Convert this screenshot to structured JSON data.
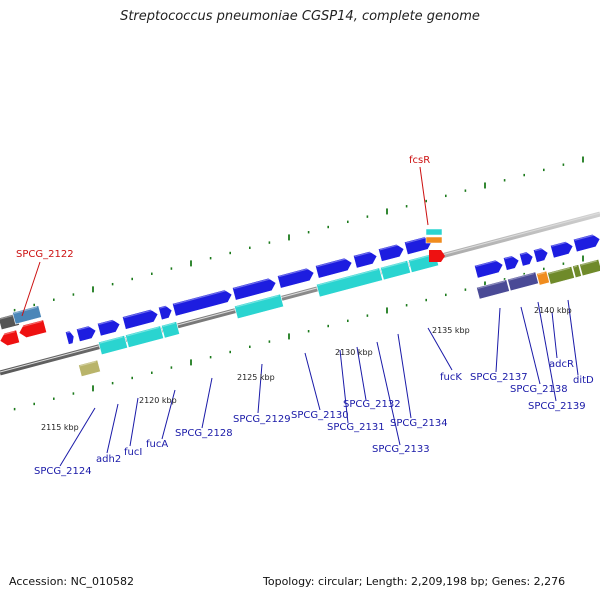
{
  "title": "Streptococcus pneumoniae CGSP14, complete genome",
  "footer": {
    "accession": "Accession: NC_010582",
    "summary": "Topology: circular; Length: 2,209,198 bp; Genes: 2,276"
  },
  "colors": {
    "backbone": "#8a8a8a",
    "gene_blue": "#1d1de0",
    "gene_red": "#ee1111",
    "gene_cyan": "#2ad4d0",
    "gene_olive": "#6f8a2a",
    "gene_slate": "#4a4a96",
    "gene_orange": "#f08c1e",
    "tick": "#1c7a1c",
    "label_blue": "#1a1aa8",
    "label_red": "#cc1111"
  },
  "kbp_labels": [
    "2115 kbp",
    "2120 kbp",
    "2125 kbp",
    "2130 kbp",
    "2135 kbp",
    "2140 kbp"
  ],
  "gene_labels": [
    {
      "text": "SPCG_2122",
      "color": "red"
    },
    {
      "text": "fcsR",
      "color": "red"
    },
    {
      "text": "SPCG_2124",
      "color": "blue"
    },
    {
      "text": "adh2",
      "color": "blue"
    },
    {
      "text": "fucI",
      "color": "blue"
    },
    {
      "text": "fucA",
      "color": "blue"
    },
    {
      "text": "SPCG_2128",
      "color": "blue"
    },
    {
      "text": "SPCG_2129",
      "color": "blue"
    },
    {
      "text": "SPCG_2130",
      "color": "blue"
    },
    {
      "text": "SPCG_2131",
      "color": "blue"
    },
    {
      "text": "SPCG_2132",
      "color": "blue"
    },
    {
      "text": "SPCG_2133",
      "color": "blue"
    },
    {
      "text": "SPCG_2134",
      "color": "blue"
    },
    {
      "text": "fucK",
      "color": "blue"
    },
    {
      "text": "SPCG_2137",
      "color": "blue"
    },
    {
      "text": "SPCG_2138",
      "color": "blue"
    },
    {
      "text": "SPCG_2139",
      "color": "blue"
    },
    {
      "text": "adcR",
      "color": "blue"
    },
    {
      "text": "ditD",
      "color": "blue"
    }
  ]
}
